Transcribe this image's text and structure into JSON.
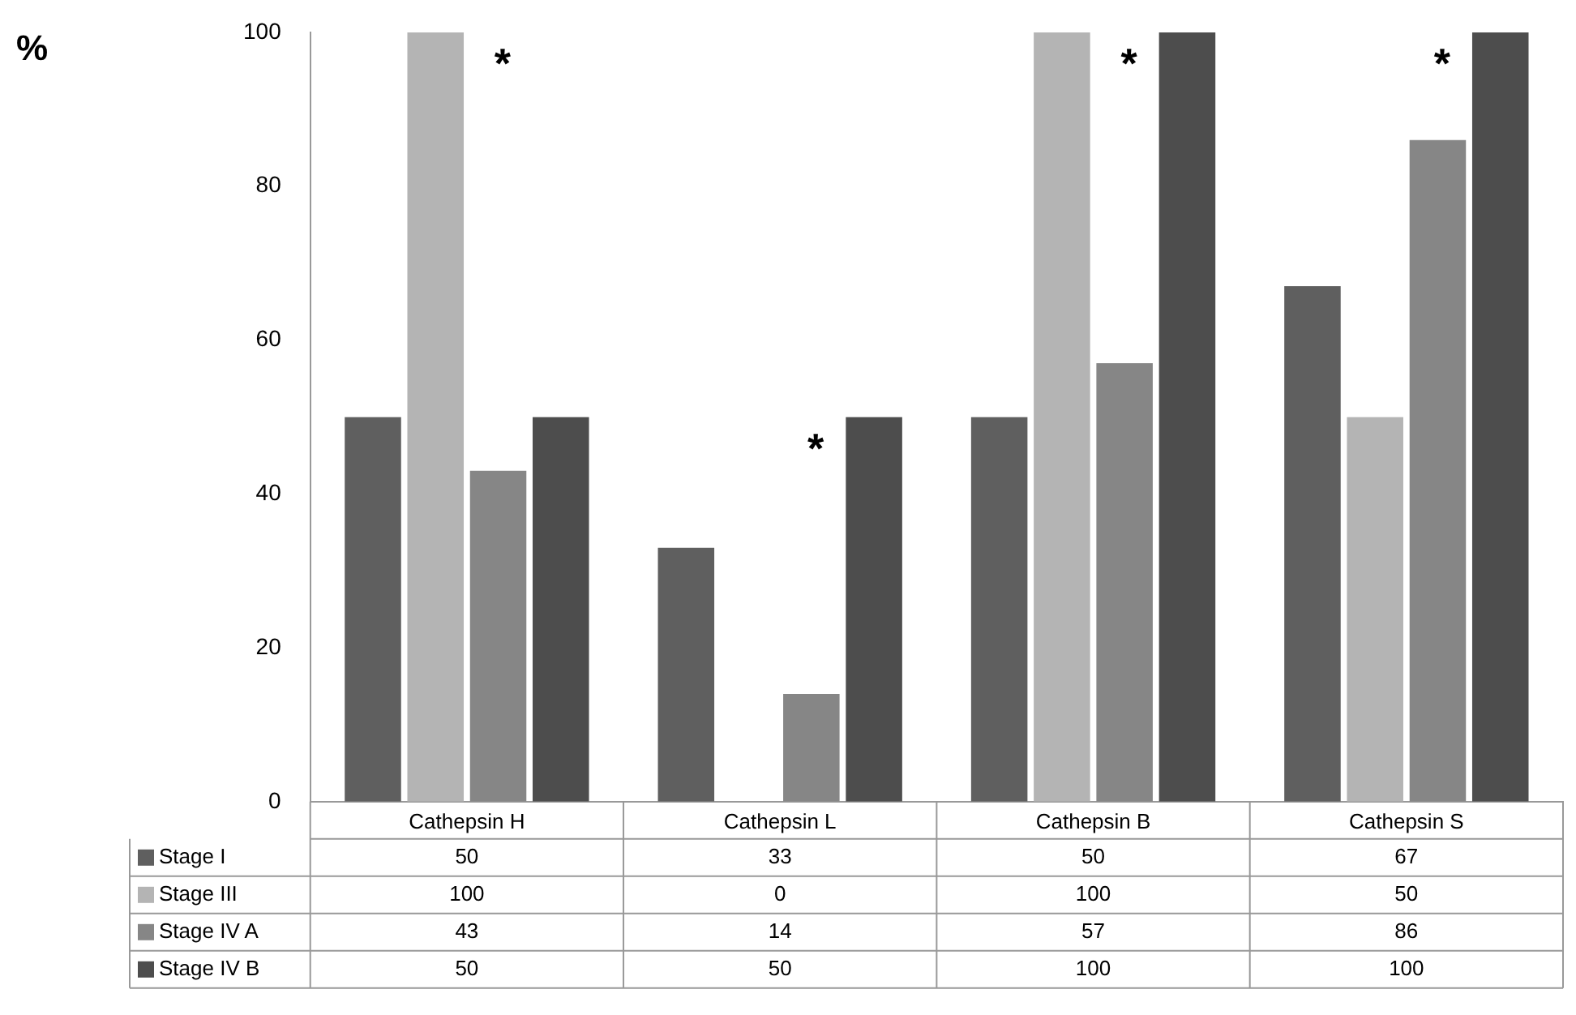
{
  "chart_data": {
    "type": "bar",
    "categories": [
      "Cathepsin H",
      "Cathepsin L",
      "Cathepsin B",
      "Cathepsin S"
    ],
    "series": [
      {
        "name": "Stage I",
        "color": "#5f5f5f",
        "values": [
          50,
          33,
          50,
          67
        ]
      },
      {
        "name": "Stage III",
        "color": "#b4b4b4",
        "values": [
          100,
          0,
          100,
          50
        ]
      },
      {
        "name": "Stage IV A",
        "color": "#868686",
        "values": [
          43,
          14,
          57,
          86
        ]
      },
      {
        "name": "Stage IV B",
        "color": "#4d4d4d",
        "values": [
          50,
          50,
          100,
          100
        ]
      }
    ],
    "ylim": [
      0,
      100
    ],
    "yticks": [
      0,
      20,
      40,
      60,
      80,
      100
    ],
    "grid": false,
    "legend": "bottom",
    "data_labels": true,
    "annotations": [
      "%",
      "*",
      "*",
      "*",
      "*"
    ]
  }
}
